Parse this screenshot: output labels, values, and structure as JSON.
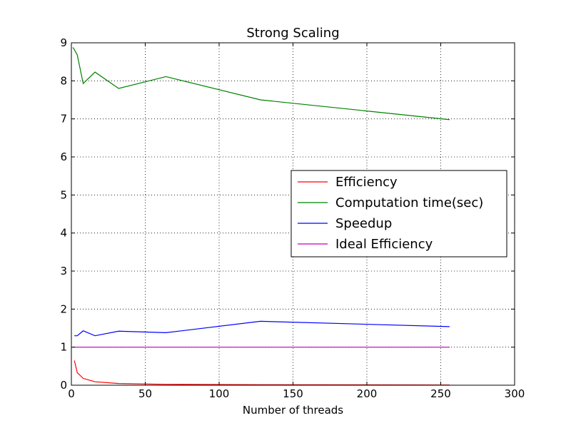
{
  "chart_data": {
    "type": "line",
    "title": "Strong Scaling",
    "xlabel": "Number of threads",
    "ylabel": "",
    "xlim": [
      0,
      300
    ],
    "ylim": [
      0,
      9
    ],
    "xticks": [
      0,
      50,
      100,
      150,
      200,
      250,
      300
    ],
    "yticks": [
      0,
      1,
      2,
      3,
      4,
      5,
      6,
      7,
      8,
      9
    ],
    "grid": true,
    "legend_position": "center-right",
    "series": [
      {
        "name": "Efficiency",
        "color": "#ff0000",
        "x": [
          2,
          4,
          8,
          16,
          32,
          64,
          128,
          256
        ],
        "y": [
          0.65,
          0.33,
          0.18,
          0.09,
          0.045,
          0.022,
          0.013,
          0.006
        ]
      },
      {
        "name": "Computation time(sec)",
        "color": "#008000",
        "x": [
          1,
          2,
          4,
          8,
          16,
          32,
          64,
          128,
          256
        ],
        "y": [
          8.88,
          8.82,
          8.68,
          7.93,
          8.23,
          7.8,
          8.11,
          7.5,
          6.98
        ]
      },
      {
        "name": "Speedup",
        "color": "#0000ff",
        "x": [
          2,
          4,
          8,
          16,
          32,
          64,
          128,
          256
        ],
        "y": [
          1.3,
          1.3,
          1.43,
          1.3,
          1.42,
          1.38,
          1.68,
          1.54
        ]
      },
      {
        "name": "Ideal Efficiency",
        "color": "#bf00bf",
        "x": [
          1,
          256
        ],
        "y": [
          1,
          1
        ]
      }
    ]
  }
}
